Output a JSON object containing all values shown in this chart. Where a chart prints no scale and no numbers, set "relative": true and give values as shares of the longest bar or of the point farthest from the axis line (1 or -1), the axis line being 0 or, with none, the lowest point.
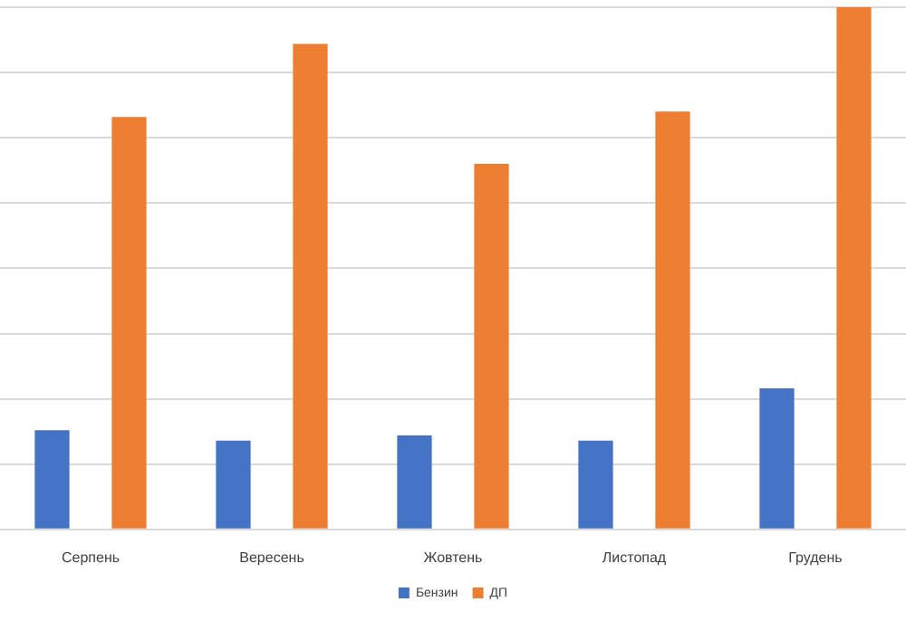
{
  "chart_data": {
    "type": "bar",
    "relative": true,
    "categories": [
      "Серпень",
      "Вересень",
      "Жовтень",
      "Листопад",
      "Грудень"
    ],
    "series": [
      {
        "name": "Бензин",
        "color": "#4472c4",
        "values": [
          0.19,
          0.17,
          0.18,
          0.17,
          0.27
        ]
      },
      {
        "name": "ДП",
        "color": "#ed7d31",
        "values": [
          0.79,
          0.93,
          0.7,
          0.8,
          1
        ]
      }
    ],
    "grid": "y",
    "legend": "bottom"
  }
}
